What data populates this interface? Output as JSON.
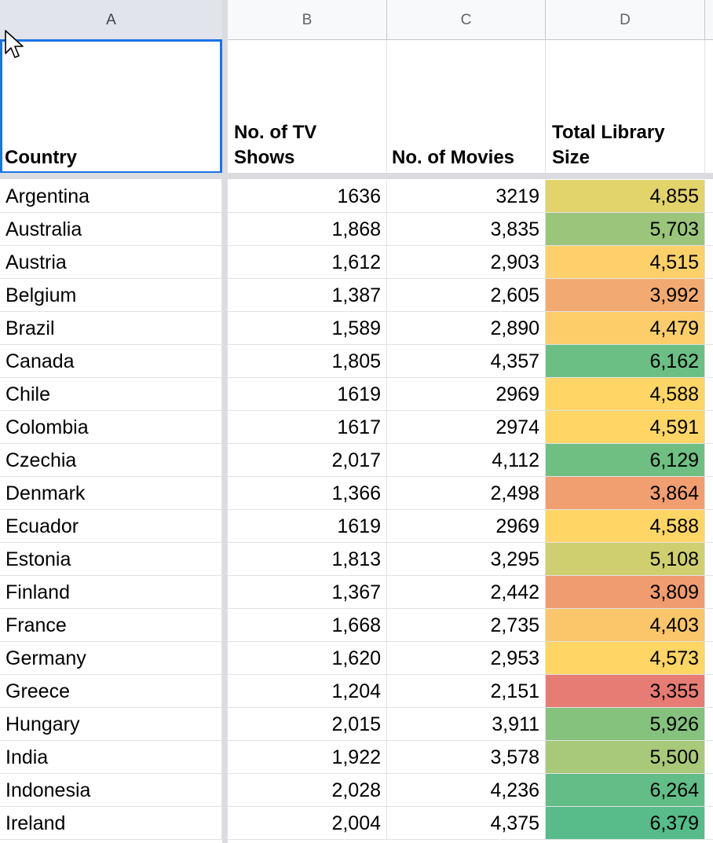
{
  "columns": [
    "A",
    "B",
    "C",
    "D"
  ],
  "headers": {
    "country": "Country",
    "tv_shows": "No. of TV\nShows",
    "movies": "No. of Movies",
    "total": "Total Library\nSize"
  },
  "rows": [
    {
      "country": "Argentina",
      "tv": "1636",
      "movies": "3219",
      "total": "4,855",
      "color": "#e2d36b"
    },
    {
      "country": "Australia",
      "tv": "1,868",
      "movies": "3,835",
      "total": "5,703",
      "color": "#9ac57b"
    },
    {
      "country": "Austria",
      "tv": "1,612",
      "movies": "2,903",
      "total": "4,515",
      "color": "#fdd06a"
    },
    {
      "country": "Belgium",
      "tv": "1,387",
      "movies": "2,605",
      "total": "3,992",
      "color": "#f3aa71"
    },
    {
      "country": "Brazil",
      "tv": "1,589",
      "movies": "2,890",
      "total": "4,479",
      "color": "#fdcd6a"
    },
    {
      "country": "Canada",
      "tv": "1,805",
      "movies": "4,357",
      "total": "6,162",
      "color": "#6cbf84"
    },
    {
      "country": "Chile",
      "tv": "1619",
      "movies": "2969",
      "total": "4,588",
      "color": "#ffd666"
    },
    {
      "country": "Colombia",
      "tv": "1617",
      "movies": "2974",
      "total": "4,591",
      "color": "#ffd666"
    },
    {
      "country": "Czechia",
      "tv": "2,017",
      "movies": "4,112",
      "total": "6,129",
      "color": "#6fbf82"
    },
    {
      "country": "Denmark",
      "tv": "1,366",
      "movies": "2,498",
      "total": "3,864",
      "color": "#f19e70"
    },
    {
      "country": "Ecuador",
      "tv": "1619",
      "movies": "2969",
      "total": "4,588",
      "color": "#ffd666"
    },
    {
      "country": "Estonia",
      "tv": "1,813",
      "movies": "3,295",
      "total": "5,108",
      "color": "#cfcf70"
    },
    {
      "country": "Finland",
      "tv": "1,367",
      "movies": "2,442",
      "total": "3,809",
      "color": "#f09c70"
    },
    {
      "country": "France",
      "tv": "1,668",
      "movies": "2,735",
      "total": "4,403",
      "color": "#fbc56a"
    },
    {
      "country": "Germany",
      "tv": "1,620",
      "movies": "2,953",
      "total": "4,573",
      "color": "#ffd565"
    },
    {
      "country": "Greece",
      "tv": "1,204",
      "movies": "2,151",
      "total": "3,355",
      "color": "#e67c73"
    },
    {
      "country": "Hungary",
      "tv": "2,015",
      "movies": "3,911",
      "total": "5,926",
      "color": "#85c27e"
    },
    {
      "country": "India",
      "tv": "1,922",
      "movies": "3,578",
      "total": "5,500",
      "color": "#a8c979"
    },
    {
      "country": "Indonesia",
      "tv": "2,028",
      "movies": "4,236",
      "total": "6,264",
      "color": "#63bd86"
    },
    {
      "country": "Ireland",
      "tv": "2,004",
      "movies": "4,375",
      "total": "6,379",
      "color": "#57bb8a"
    }
  ]
}
